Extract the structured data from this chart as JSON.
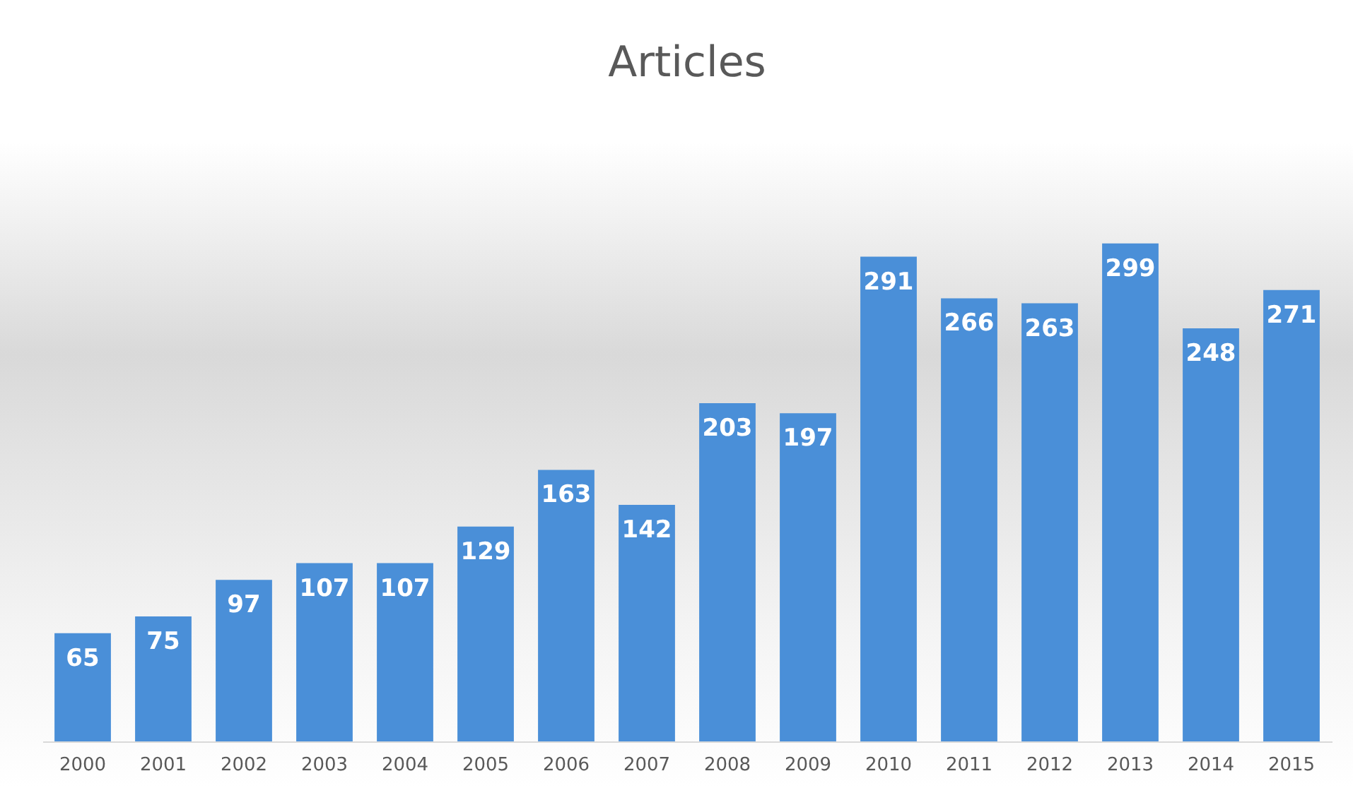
{
  "chart_data": {
    "type": "bar",
    "title": "Articles",
    "categories": [
      "2000",
      "2001",
      "2002",
      "2003",
      "2004",
      "2005",
      "2006",
      "2007",
      "2008",
      "2009",
      "2010",
      "2011",
      "2012",
      "2013",
      "2014",
      "2015"
    ],
    "values": [
      65,
      75,
      97,
      107,
      107,
      129,
      163,
      142,
      203,
      197,
      291,
      266,
      263,
      299,
      248,
      271
    ],
    "color": "#4a8fd8",
    "data_labels": true
  }
}
